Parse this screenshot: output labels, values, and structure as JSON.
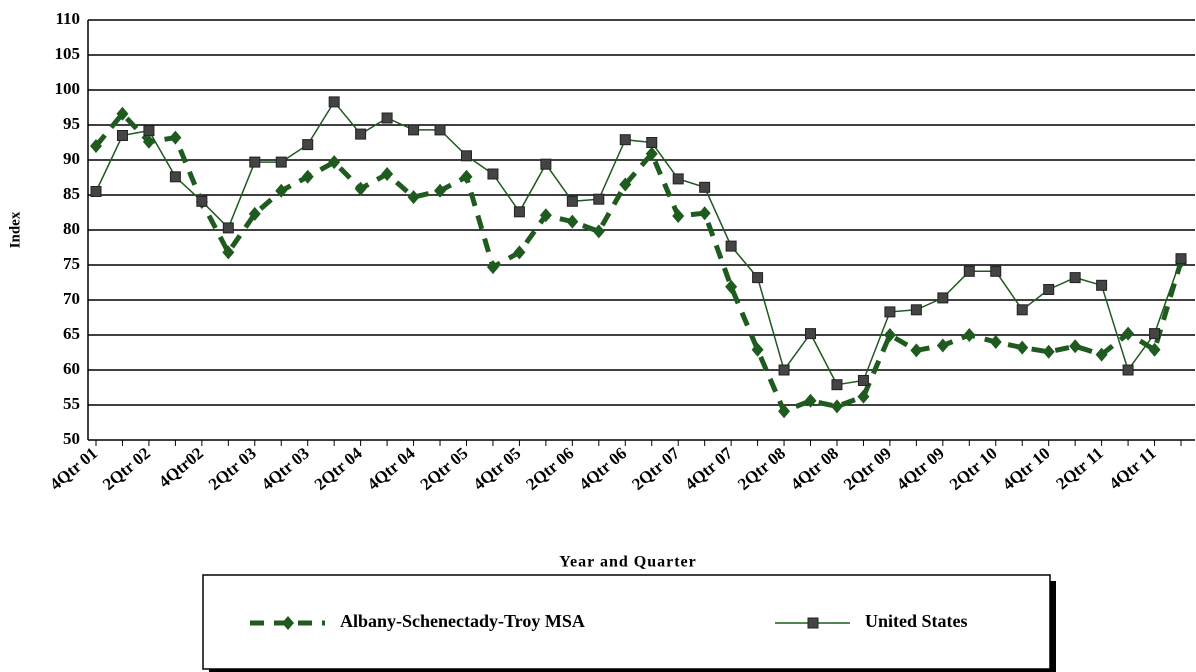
{
  "chart_data": {
    "type": "line",
    "y_label": "Index",
    "x_label": "Year and Quarter",
    "categories": [
      "4Qtr 01",
      null,
      "2Qtr 02",
      null,
      "4Qtr02",
      null,
      "2Qtr 03",
      null,
      "4Qtr 03",
      null,
      "2Qtr 04",
      null,
      "4Qtr 04",
      null,
      "2Qtr 05",
      null,
      "4Qtr 05",
      null,
      "2Qtr 06",
      null,
      "4Qtr 06",
      null,
      "2Qtr 07",
      null,
      "4Qtr 07",
      null,
      "2Qtr 08",
      null,
      "4Qtr 08",
      null,
      "2Qtr 09",
      null,
      "4Qtr 09",
      null,
      "2Qtr 10",
      null,
      "4Qtr 10",
      null,
      "2Qtr 11",
      null,
      "4Qtr 11",
      null
    ],
    "series": [
      {
        "name": "Albany-Schenectady-Troy MSA",
        "color": "#1f5a1f",
        "marker": "diamond",
        "dashed": true,
        "values": [
          92,
          96.6,
          92.6,
          93.2,
          84,
          76.8,
          82.3,
          85.6,
          87.6,
          89.7,
          85.9,
          88,
          84.7,
          85.6,
          87.6,
          74.7,
          76.8,
          82.1,
          81.2,
          79.8,
          86.5,
          90.9,
          82,
          82.4,
          71.9,
          62.9,
          54.1,
          55.6,
          54.8,
          56.2,
          65,
          62.8,
          63.5,
          65,
          64,
          63.2,
          62.6,
          63.4,
          62.2,
          65.2,
          62.9,
          75.5
        ]
      },
      {
        "name": "United States",
        "color": "#1f5a1f",
        "marker": "square",
        "dashed": false,
        "values": [
          85.5,
          93.5,
          94.2,
          87.6,
          84.1,
          80.3,
          89.7,
          89.7,
          92.2,
          98.3,
          93.7,
          96.0,
          94.3,
          94.3,
          90.6,
          88.0,
          82.6,
          89.4,
          84.1,
          84.4,
          92.9,
          92.5,
          87.3,
          86.1,
          77.7,
          73.2,
          60.0,
          65.2,
          57.9,
          58.5,
          68.3,
          68.6,
          70.3,
          74.1,
          74.1,
          68.6,
          71.5,
          73.2,
          72.1,
          60.0,
          65.2,
          75.9
        ]
      }
    ],
    "ylim": [
      50,
      110
    ],
    "yticks": [
      50,
      55,
      60,
      65,
      70,
      75,
      80,
      85,
      90,
      95,
      100,
      105,
      110
    ],
    "grid": true,
    "legend": "bottom"
  }
}
